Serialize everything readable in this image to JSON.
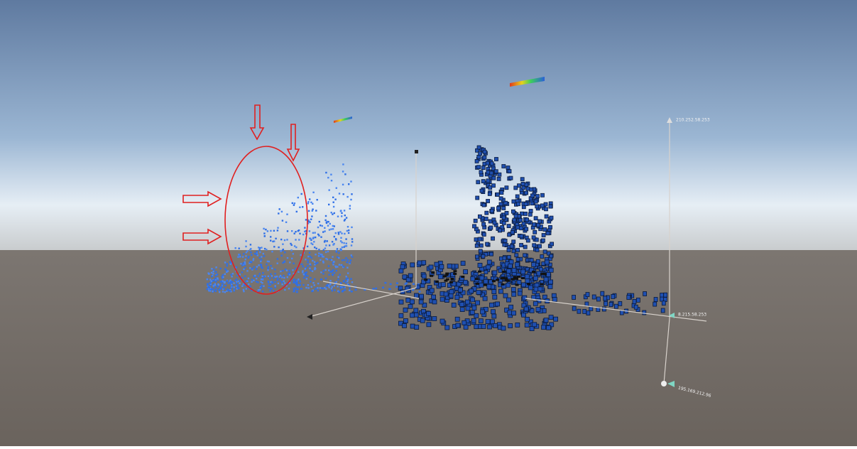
{
  "axis_labels": {
    "right_axis_top": "210.252.58.253",
    "right_axis_base": "8.215.58.253",
    "right_axis_front": "195.169.212.96"
  }
}
